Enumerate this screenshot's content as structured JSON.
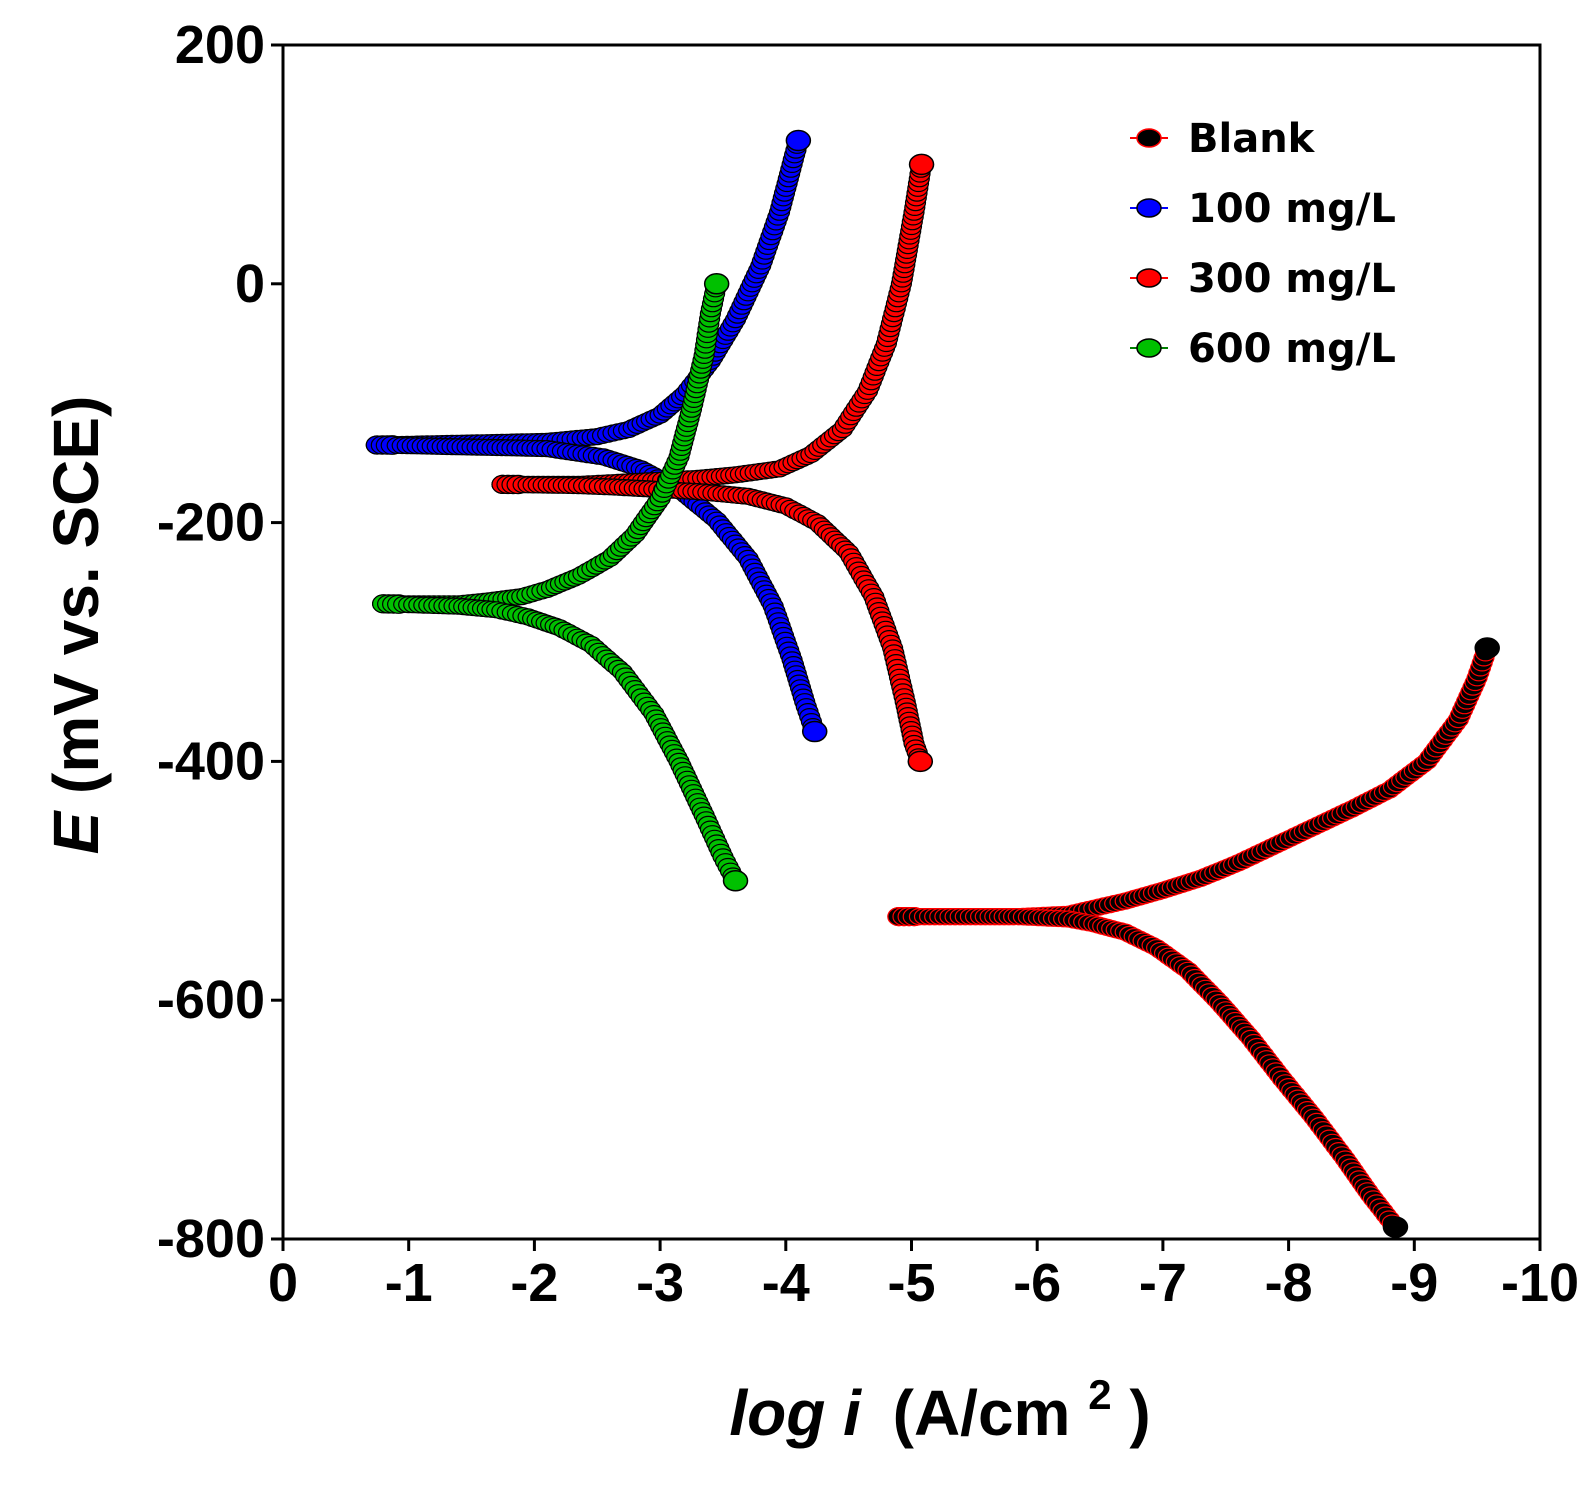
{
  "chart_data": {
    "type": "line",
    "title": "",
    "xlabel": "log i (A/cm2)",
    "xlabel_parts": {
      "italic": "log i",
      "unit": "(A/cm",
      "sup": "2",
      "close": ")"
    },
    "ylabel": "E (mV vs. SCE)",
    "ylabel_parts": {
      "italic": "E",
      "rest": " (mV vs. SCE)"
    },
    "xlim": [
      0,
      -10
    ],
    "ylim": [
      -800,
      200
    ],
    "x_ticks": [
      0,
      -1,
      -2,
      -3,
      -4,
      -5,
      -6,
      -7,
      -8,
      -9,
      -10
    ],
    "x_tick_labels": [
      "0",
      "-1",
      "-2",
      "-3",
      "-4",
      "-5",
      "-6",
      "-7",
      "-8",
      "-9",
      "-10"
    ],
    "y_ticks": [
      200,
      0,
      -200,
      -400,
      -600,
      -800
    ],
    "y_tick_labels": [
      "200",
      "0",
      "-200",
      "-400",
      "-600",
      "-800"
    ],
    "grid": false,
    "legend_position": "top-right",
    "series": [
      {
        "name": "Blank",
        "color": "#ff0000",
        "marker_color": "#000000",
        "ecorr": -530,
        "anodic": [
          [
            -4.9,
            -530
          ],
          [
            -5.55,
            -530
          ],
          [
            -5.85,
            -530
          ],
          [
            -6.25,
            -528
          ],
          [
            -6.45,
            -523
          ],
          [
            -6.7,
            -517
          ],
          [
            -7.0,
            -508
          ],
          [
            -7.3,
            -498
          ],
          [
            -7.6,
            -485
          ],
          [
            -7.9,
            -470
          ],
          [
            -8.2,
            -455
          ],
          [
            -8.5,
            -440
          ],
          [
            -8.8,
            -424
          ],
          [
            -9.1,
            -400
          ],
          [
            -9.35,
            -365
          ],
          [
            -9.5,
            -330
          ],
          [
            -9.58,
            -305
          ]
        ],
        "cathodic": [
          [
            -4.9,
            -530
          ],
          [
            -5.55,
            -530
          ],
          [
            -5.85,
            -530
          ],
          [
            -6.25,
            -532
          ],
          [
            -6.45,
            -536
          ],
          [
            -6.7,
            -543
          ],
          [
            -6.95,
            -556
          ],
          [
            -7.2,
            -575
          ],
          [
            -7.45,
            -602
          ],
          [
            -7.7,
            -632
          ],
          [
            -7.95,
            -666
          ],
          [
            -8.2,
            -698
          ],
          [
            -8.45,
            -733
          ],
          [
            -8.65,
            -763
          ],
          [
            -8.85,
            -790
          ]
        ]
      },
      {
        "name": "100 mg/L",
        "color": "#0000ff",
        "marker_color": "#0000ff",
        "ecorr": -135,
        "anodic": [
          [
            -0.75,
            -135
          ],
          [
            -2.1,
            -132
          ],
          [
            -2.5,
            -128
          ],
          [
            -2.75,
            -122
          ],
          [
            -3.0,
            -110
          ],
          [
            -3.2,
            -92
          ],
          [
            -3.4,
            -65
          ],
          [
            -3.6,
            -30
          ],
          [
            -3.8,
            15
          ],
          [
            -3.95,
            60
          ],
          [
            -4.05,
            100
          ],
          [
            -4.1,
            120
          ]
        ],
        "cathodic": [
          [
            -0.75,
            -135
          ],
          [
            -2.1,
            -138
          ],
          [
            -2.55,
            -145
          ],
          [
            -2.85,
            -155
          ],
          [
            -3.15,
            -172
          ],
          [
            -3.45,
            -198
          ],
          [
            -3.7,
            -230
          ],
          [
            -3.9,
            -270
          ],
          [
            -4.05,
            -315
          ],
          [
            -4.15,
            -350
          ],
          [
            -4.23,
            -375
          ]
        ]
      },
      {
        "name": "300 mg/L",
        "color": "#ff0000",
        "marker_color": "#ff0000",
        "ecorr": -168,
        "anodic": [
          [
            -1.75,
            -168
          ],
          [
            -2.35,
            -168
          ],
          [
            -2.55,
            -167
          ],
          [
            -2.9,
            -165
          ],
          [
            -3.3,
            -163
          ],
          [
            -3.6,
            -160
          ],
          [
            -3.95,
            -155
          ],
          [
            -4.2,
            -143
          ],
          [
            -4.45,
            -122
          ],
          [
            -4.65,
            -90
          ],
          [
            -4.8,
            -50
          ],
          [
            -4.92,
            0
          ],
          [
            -5.02,
            60
          ],
          [
            -5.08,
            100
          ]
        ],
        "cathodic": [
          [
            -1.75,
            -168
          ],
          [
            -2.35,
            -169
          ],
          [
            -2.6,
            -170
          ],
          [
            -2.95,
            -172
          ],
          [
            -3.3,
            -174
          ],
          [
            -3.7,
            -178
          ],
          [
            -4.0,
            -186
          ],
          [
            -4.25,
            -200
          ],
          [
            -4.5,
            -225
          ],
          [
            -4.7,
            -262
          ],
          [
            -4.85,
            -305
          ],
          [
            -4.95,
            -350
          ],
          [
            -5.02,
            -385
          ],
          [
            -5.07,
            -400
          ]
        ]
      },
      {
        "name": "600 mg/L",
        "color": "#008000",
        "marker_color": "#00c000",
        "ecorr": -268,
        "anodic": [
          [
            -0.8,
            -268
          ],
          [
            -1.4,
            -268
          ],
          [
            -1.6,
            -266
          ],
          [
            -1.9,
            -262
          ],
          [
            -2.1,
            -256
          ],
          [
            -2.35,
            -245
          ],
          [
            -2.6,
            -230
          ],
          [
            -2.8,
            -210
          ],
          [
            -3.0,
            -180
          ],
          [
            -3.15,
            -145
          ],
          [
            -3.25,
            -105
          ],
          [
            -3.35,
            -60
          ],
          [
            -3.4,
            -25
          ],
          [
            -3.45,
            0
          ]
        ],
        "cathodic": [
          [
            -0.8,
            -268
          ],
          [
            -1.4,
            -270
          ],
          [
            -1.7,
            -273
          ],
          [
            -1.95,
            -279
          ],
          [
            -2.2,
            -288
          ],
          [
            -2.45,
            -302
          ],
          [
            -2.7,
            -325
          ],
          [
            -2.95,
            -360
          ],
          [
            -3.15,
            -400
          ],
          [
            -3.35,
            -445
          ],
          [
            -3.5,
            -480
          ],
          [
            -3.6,
            -500
          ]
        ]
      }
    ]
  }
}
